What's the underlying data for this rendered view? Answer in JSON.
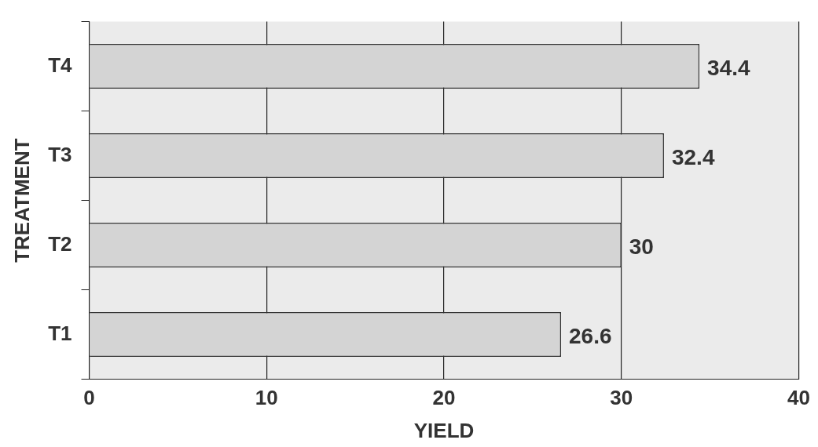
{
  "chart_data": {
    "type": "bar",
    "orientation": "horizontal",
    "xlabel": "YIELD",
    "ylabel": "TREATMENT",
    "categories": [
      "T4",
      "T3",
      "T2",
      "T1"
    ],
    "values": [
      34.4,
      32.4,
      30,
      26.6
    ],
    "color": "#d4d4d4",
    "xlim": [
      0,
      40
    ],
    "xticks": [
      0,
      10,
      20,
      30,
      40
    ],
    "grid": "x",
    "data_labels": true,
    "legend": false
  }
}
